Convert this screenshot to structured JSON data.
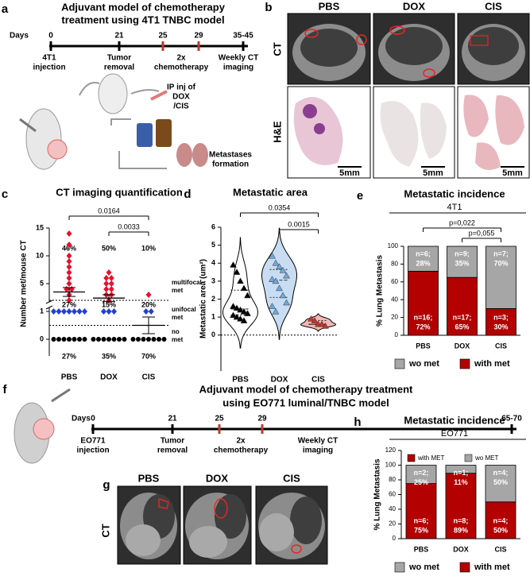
{
  "panel_a": {
    "letter": "a",
    "title": [
      "Adjuvant model of  chemotherapy",
      "treatment using 4T1 TNBC model"
    ],
    "timeline": {
      "label": "Days",
      "ticks": [
        {
          "label": "0",
          "color": "#000000"
        },
        {
          "label": "21",
          "color": "#000000"
        },
        {
          "label": "25",
          "color": "#c0392b"
        },
        {
          "label": "29",
          "color": "#c0392b"
        },
        {
          "label": "35-45",
          "color": "#000000"
        }
      ],
      "events": [
        [
          "4T1",
          "injection"
        ],
        [
          "Tumor",
          "removal"
        ],
        [
          "2x",
          "chemotherapy"
        ],
        [
          "Weekly CT",
          "imaging"
        ]
      ]
    },
    "injection_note": [
      "IP inj of",
      "DOX",
      "/CIS"
    ],
    "outcome_note": [
      "Metastases",
      "formation"
    ]
  },
  "panel_b": {
    "letter": "b",
    "columns": [
      "PBS",
      "DOX",
      "CIS"
    ],
    "rows": [
      "CT",
      "H&E"
    ],
    "scale_bar": "5mm"
  },
  "panel_f": {
    "letter": "f",
    "title": [
      "Adjuvant model of  chemotherapy treatment",
      "using EO771 luminal/TNBC model"
    ],
    "timeline": {
      "label": "Days",
      "ticks": [
        {
          "label": "0",
          "color": "#000000"
        },
        {
          "label": "21",
          "color": "#000000"
        },
        {
          "label": "25",
          "color": "#c0392b"
        },
        {
          "label": "29",
          "color": "#c0392b"
        },
        {
          "label": "65-70",
          "color": "#000000"
        }
      ],
      "events": [
        [
          "EO771",
          "injection"
        ],
        [
          "Tumor",
          "removal"
        ],
        [
          "2x",
          "chemotherapy"
        ],
        [
          "Weekly CT",
          "imaging"
        ]
      ]
    }
  },
  "panel_g": {
    "letter": "g",
    "columns": [
      "PBS",
      "DOX",
      "CIS"
    ],
    "row": "CT"
  },
  "chart_data": [
    {
      "type": "dot",
      "letter": "c",
      "title": "CT imaging quantification",
      "y_label": "Number met/mouse CT",
      "categories": [
        "PBS",
        "DOX",
        "CIS"
      ],
      "ylim": [
        0,
        15
      ],
      "axis_break": [
        1,
        2
      ],
      "yticks": [
        0,
        1,
        5,
        10,
        15
      ],
      "series": [
        {
          "name": [
            "multifocal",
            "met"
          ],
          "color": "#e8112d",
          "marker": "diamond",
          "values": [
            [
              14,
              12,
              10,
              9,
              8,
              7,
              6,
              5,
              4,
              4,
              3,
              2
            ],
            [
              7,
              6,
              6,
              5,
              5,
              4,
              4,
              3,
              3,
              2
            ],
            [
              3
            ]
          ],
          "percent_labels": [
            "46%",
            "50%",
            "10%"
          ]
        },
        {
          "name": [
            "unifocal",
            "met"
          ],
          "color": "#1f3fd8",
          "marker": "diamond",
          "values": [
            [
              1,
              1,
              1,
              1,
              1,
              1,
              1
            ],
            [
              1,
              1,
              1
            ],
            [
              1,
              1
            ]
          ],
          "percent_labels": [
            "27%",
            "15%",
            "20%"
          ]
        },
        {
          "name": [
            "no",
            "met"
          ],
          "color": "#000000",
          "marker": "circle",
          "values": [
            [
              0,
              0,
              0,
              0,
              0,
              0,
              0
            ],
            [
              0,
              0,
              0,
              0,
              0,
              0,
              0
            ],
            [
              0,
              0,
              0,
              0,
              0,
              0,
              0
            ]
          ],
          "percent_labels": [
            "27%",
            "35%",
            "70%"
          ]
        }
      ],
      "means": [
        3.5,
        2.4,
        0.5
      ],
      "errors": [
        0.8,
        0.6,
        0.3
      ],
      "comparisons": [
        {
          "from": "PBS",
          "to": "CIS",
          "label": "0.0164"
        },
        {
          "from": "DOX",
          "to": "CIS",
          "label": "0.0033"
        }
      ]
    },
    {
      "type": "violin",
      "letter": "d",
      "title": "Metastatic area",
      "y_label": "Metastatic area (um²)",
      "categories": [
        "PBS",
        "DOX",
        "CIS"
      ],
      "ylim": [
        -2,
        6
      ],
      "yticks": [
        0,
        1,
        2,
        3,
        4,
        5,
        6
      ],
      "values": [
        [
          3.9,
          3.5,
          3.0,
          2.6,
          2.2,
          1.6,
          1.5,
          1.4,
          1.3,
          1.2,
          1.1,
          1.0,
          0.9,
          0.8
        ],
        [
          4.4,
          4.0,
          3.8,
          3.6,
          3.3,
          3.1,
          3.0,
          2.6,
          2.2,
          1.8,
          1.6,
          1.3
        ],
        [
          0.9,
          0.8,
          0.6,
          0.6,
          0.5
        ]
      ],
      "fill_colors": [
        "#ffffff",
        "#c9ddf2",
        "#f4b6b6"
      ],
      "point_colors": [
        "#000000",
        "#6fa8dc",
        "#c0392b"
      ],
      "comparisons": [
        {
          "from": "PBS",
          "to": "CIS",
          "label": "0.0354"
        },
        {
          "from": "DOX",
          "to": "CIS",
          "label": "0.0015"
        }
      ]
    },
    {
      "type": "stacked_bar",
      "letter": "e",
      "title": "Metastatic incidence",
      "subtitle": "4T1",
      "y_label": "% Lung Metastasis",
      "categories": [
        "PBS",
        "DOX",
        "CIS"
      ],
      "ylim": [
        0,
        100
      ],
      "yticks": [
        0,
        20,
        40,
        60,
        80,
        100
      ],
      "series": [
        {
          "name": "with met",
          "color": "#b30000",
          "values": [
            72,
            65,
            30
          ],
          "value_labels": [
            [
              "n=16;",
              "72%"
            ],
            [
              "n=17;",
              "65%"
            ],
            [
              "n=3;",
              "30%"
            ]
          ]
        },
        {
          "name": "wo met",
          "color": "#a6a6a6",
          "values": [
            28,
            35,
            70
          ],
          "value_labels": [
            [
              "n=6;",
              "28%"
            ],
            [
              "n=9;",
              "35%"
            ],
            [
              "n=7;",
              "70%"
            ]
          ]
        }
      ],
      "comparisons": [
        {
          "from": "PBS",
          "to": "CIS",
          "label": "p=0,022"
        },
        {
          "from": "DOX",
          "to": "CIS",
          "label": "p=0,055"
        }
      ]
    },
    {
      "type": "stacked_bar",
      "letter": "h",
      "title": "Metastatic incidence",
      "subtitle": "EO771",
      "y_label": "% Lung Metastasis",
      "categories": [
        "PBS",
        "DOX",
        "CIS"
      ],
      "ylim": [
        0,
        120
      ],
      "yticks": [
        0,
        20,
        40,
        60,
        80,
        100,
        120
      ],
      "series": [
        {
          "name": "with met",
          "color": "#b30000",
          "values": [
            75,
            89,
            50
          ],
          "value_labels": [
            [
              "n=6;",
              "75%"
            ],
            [
              "n=8;",
              "89%"
            ],
            [
              "n=4;",
              "50%"
            ]
          ]
        },
        {
          "name": "wo met",
          "color": "#a6a6a6",
          "values": [
            25,
            11,
            50
          ],
          "value_labels": [
            [
              "n=2;",
              "25%"
            ],
            [
              "n=1;",
              "11%"
            ],
            [
              "n=4;",
              "50%"
            ]
          ]
        }
      ],
      "inset_legend": [
        "with MET",
        "wo MET"
      ]
    }
  ]
}
